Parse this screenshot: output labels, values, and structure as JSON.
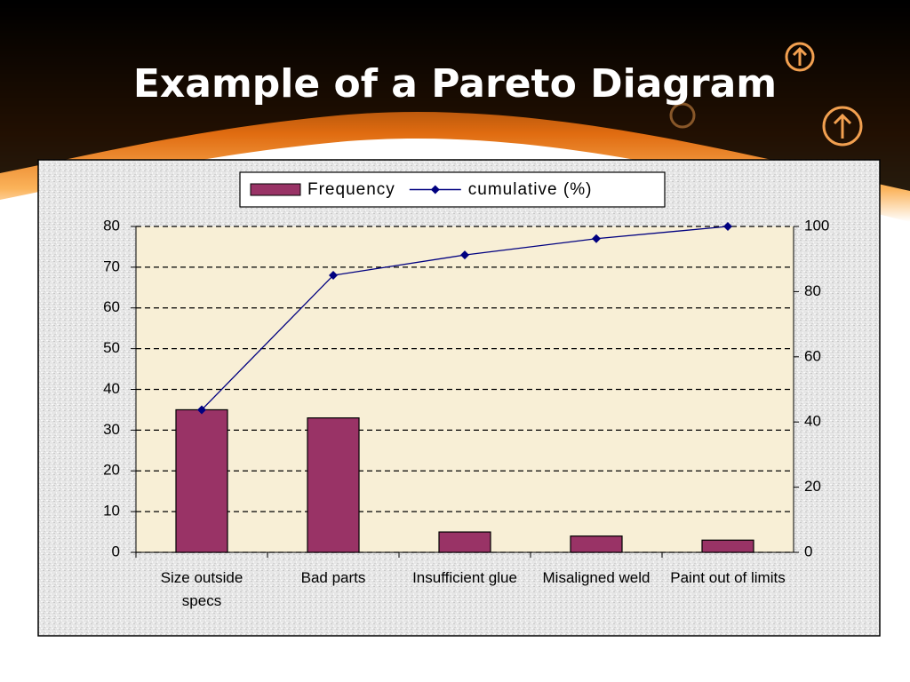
{
  "title": "Example of a Pareto Diagram",
  "chart_data": {
    "type": "bar",
    "categories": [
      "Size outside specs",
      "Bad parts",
      "Insufficient glue",
      "Misaligned weld",
      "Paint out of limits"
    ],
    "series": [
      {
        "name": "Frequency",
        "color": "#993366",
        "type": "bar",
        "values": [
          35,
          33,
          5,
          4,
          3
        ]
      },
      {
        "name": "cumulative (%)",
        "color": "#000080",
        "type": "line",
        "axis": "y2",
        "values": [
          43.75,
          85,
          91.25,
          96.25,
          100
        ]
      }
    ],
    "ylim": [
      0,
      80
    ],
    "yticks": [
      0,
      10,
      20,
      30,
      40,
      50,
      60,
      70,
      80
    ],
    "y2lim": [
      0,
      100
    ],
    "y2ticks": [
      0,
      20,
      40,
      60,
      80,
      100
    ],
    "grid": true,
    "legend": "top"
  }
}
